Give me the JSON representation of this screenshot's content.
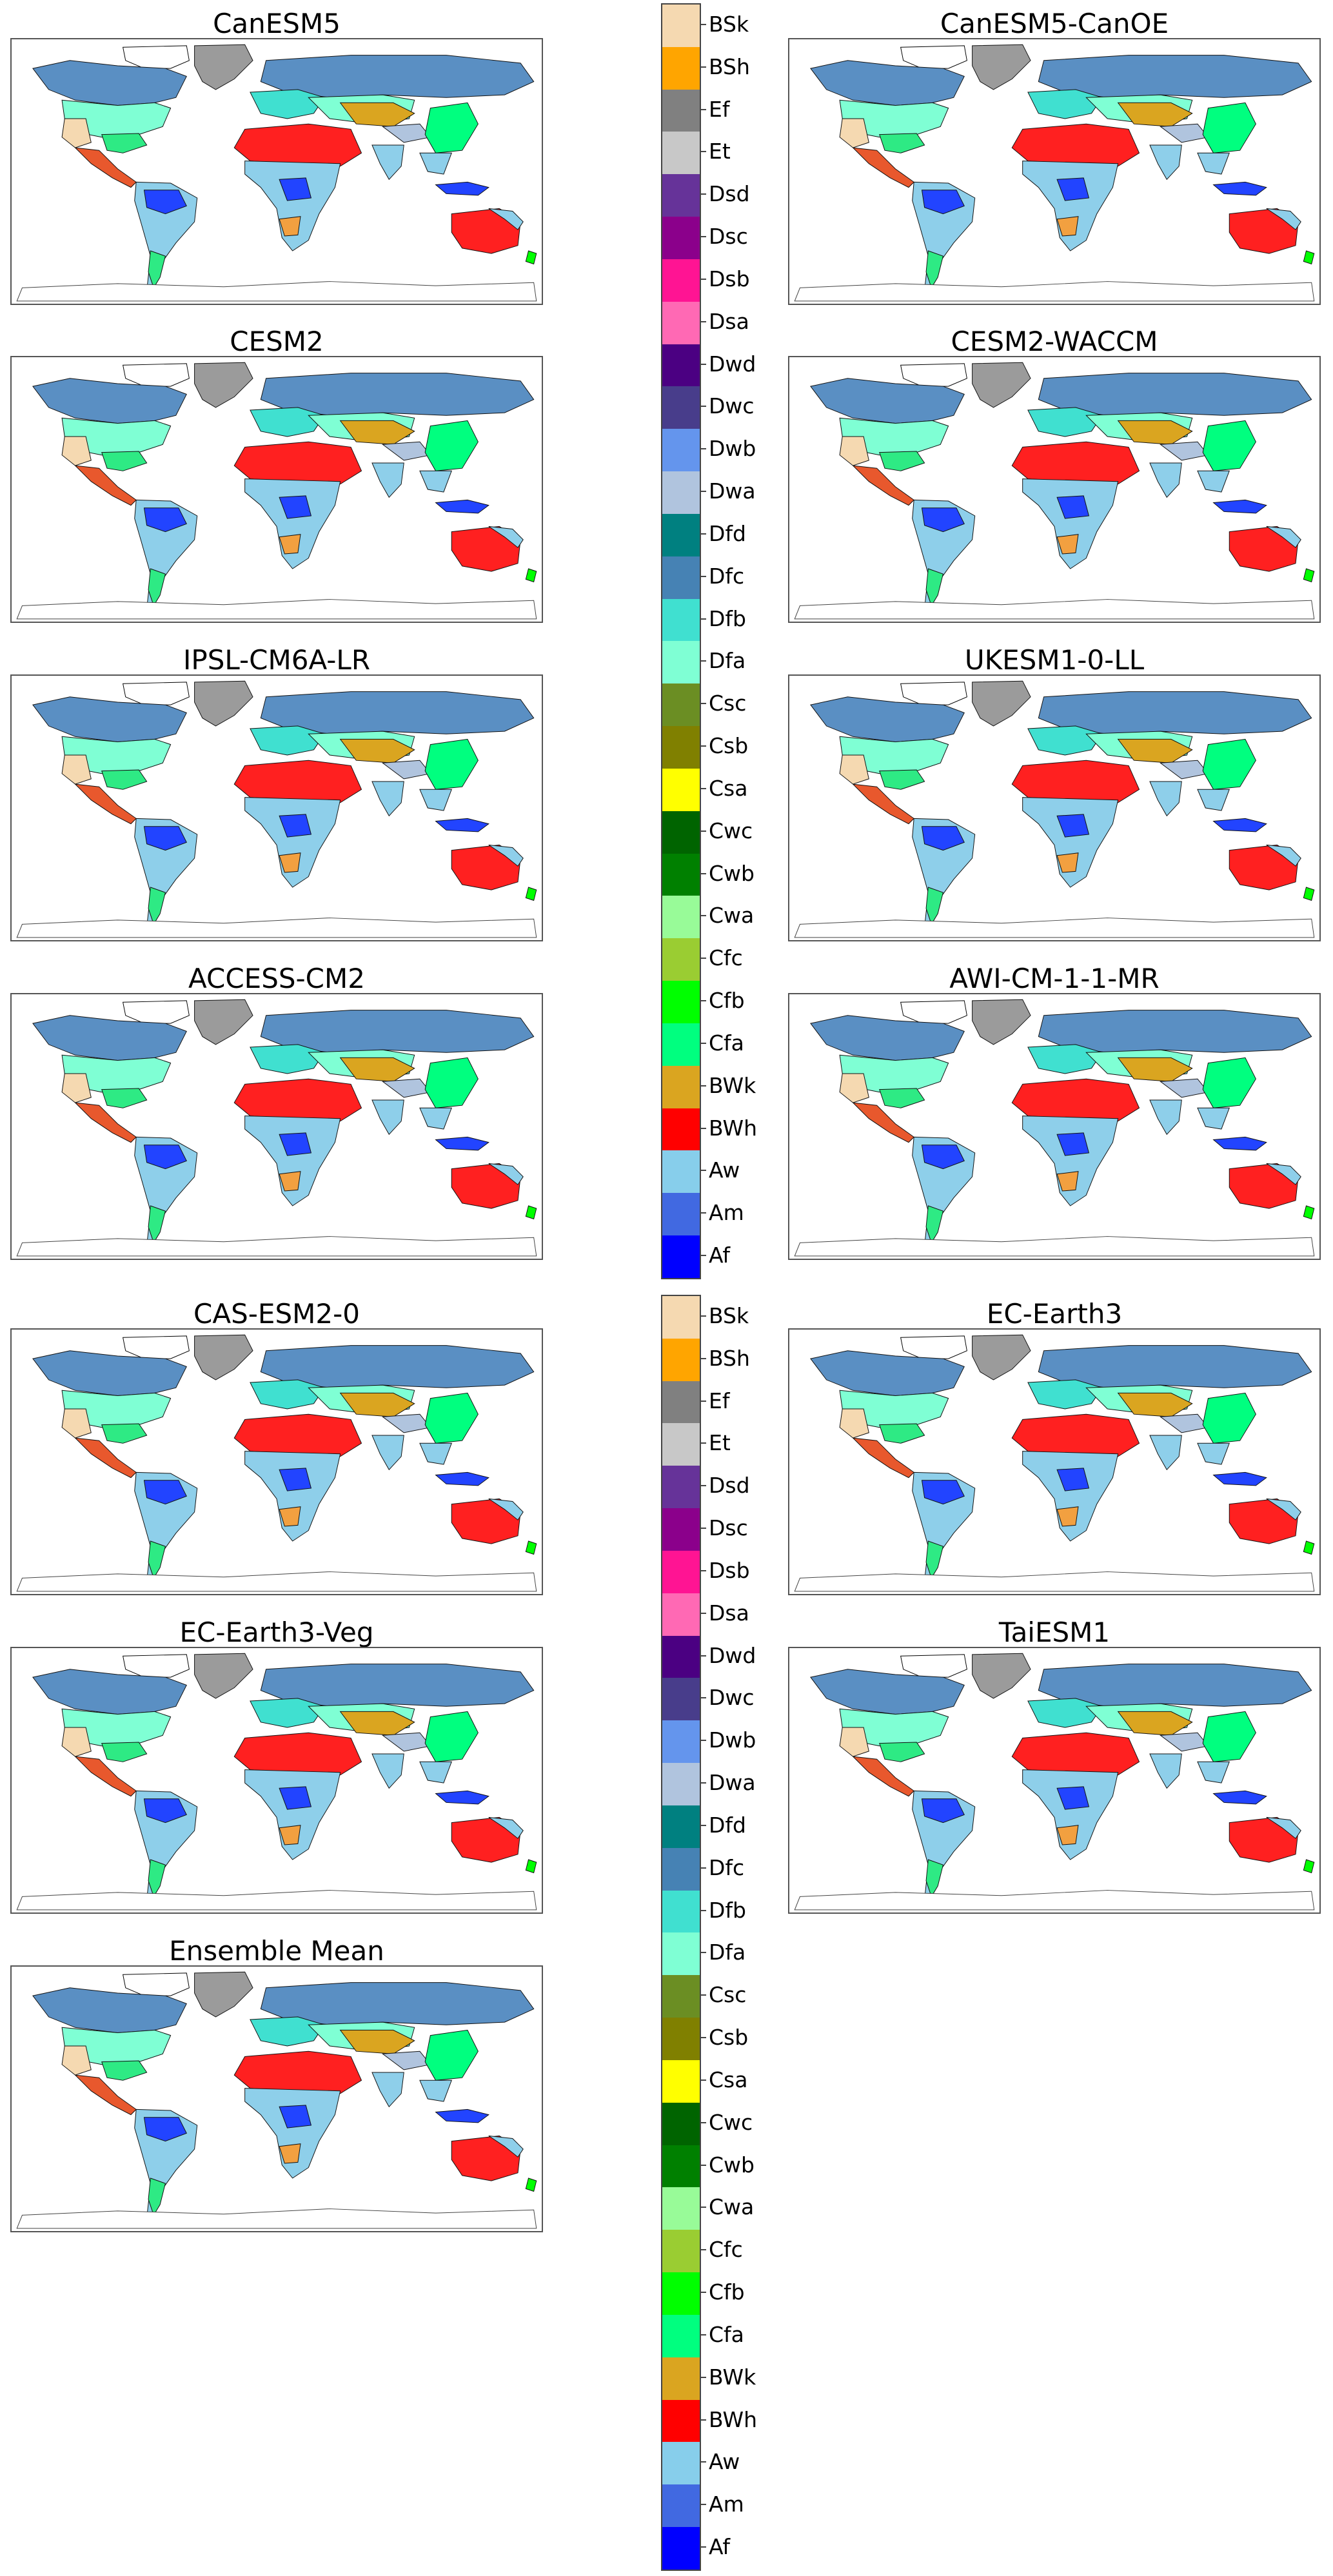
{
  "panels": [
    {
      "title": "CanESM5"
    },
    {
      "title": "CanESM5-CanOE"
    },
    {
      "title": "CESM2"
    },
    {
      "title": "CESM2-WACCM"
    },
    {
      "title": "IPSL-CM6A-LR"
    },
    {
      "title": "UKESM1-0-LL"
    },
    {
      "title": "ACCESS-CM2"
    },
    {
      "title": "AWI-CM-1-1-MR"
    },
    {
      "title": "CAS-ESM2-0"
    },
    {
      "title": "EC-Earth3"
    },
    {
      "title": "EC-Earth3-Veg"
    },
    {
      "title": "TaiESM1"
    },
    {
      "title": "Ensemble Mean"
    }
  ],
  "legend": {
    "classes": [
      {
        "code": "BSk",
        "color": "#f5d9b1"
      },
      {
        "code": "BSh",
        "color": "#ffa500"
      },
      {
        "code": "Ef",
        "color": "#808080"
      },
      {
        "code": "Et",
        "color": "#c8c8c8"
      },
      {
        "code": "Dsd",
        "color": "#663399"
      },
      {
        "code": "Dsc",
        "color": "#8b008b"
      },
      {
        "code": "Dsb",
        "color": "#ff1493"
      },
      {
        "code": "Dsa",
        "color": "#ff69b4"
      },
      {
        "code": "Dwd",
        "color": "#4b0082"
      },
      {
        "code": "Dwc",
        "color": "#483d8b"
      },
      {
        "code": "Dwb",
        "color": "#6495ed"
      },
      {
        "code": "Dwa",
        "color": "#b0c4de"
      },
      {
        "code": "Dfd",
        "color": "#008080"
      },
      {
        "code": "Dfc",
        "color": "#4682b4"
      },
      {
        "code": "Dfb",
        "color": "#40e0d0"
      },
      {
        "code": "Dfa",
        "color": "#7fffd4"
      },
      {
        "code": "Csc",
        "color": "#6b8e23"
      },
      {
        "code": "Csb",
        "color": "#808000"
      },
      {
        "code": "Csa",
        "color": "#ffff00"
      },
      {
        "code": "Cwc",
        "color": "#006400"
      },
      {
        "code": "Cwb",
        "color": "#008000"
      },
      {
        "code": "Cwa",
        "color": "#98fb98"
      },
      {
        "code": "Cfc",
        "color": "#9acd32"
      },
      {
        "code": "Cfb",
        "color": "#00ff00"
      },
      {
        "code": "Cfa",
        "color": "#00ff7f"
      },
      {
        "code": "BWk",
        "color": "#daa520"
      },
      {
        "code": "BWh",
        "color": "#ff0000"
      },
      {
        "code": "Aw",
        "color": "#87ceeb"
      },
      {
        "code": "Am",
        "color": "#4169e1"
      },
      {
        "code": "Af",
        "color": "#0000ff"
      }
    ]
  }
}
